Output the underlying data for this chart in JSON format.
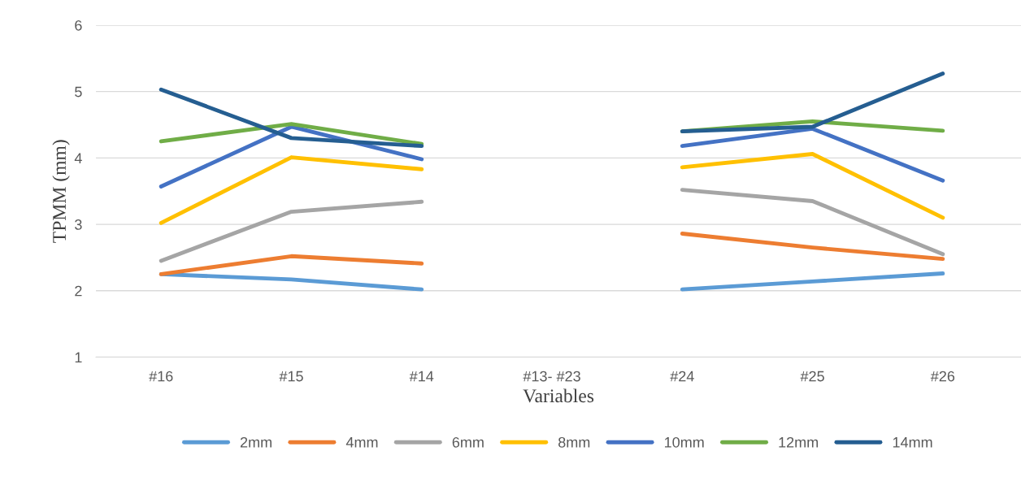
{
  "chart_data": {
    "type": "line",
    "xlabel": "Variables",
    "ylabel": "TPMM (mm)",
    "categories": [
      "#16",
      "#15",
      "#14",
      "#13- #23",
      "#24",
      "#25",
      "#26"
    ],
    "series": [
      {
        "name": "2mm",
        "color": "#5b9bd5",
        "values": [
          2.25,
          2.17,
          2.02,
          null,
          2.02,
          2.14,
          2.26
        ]
      },
      {
        "name": "4mm",
        "color": "#ed7d31",
        "values": [
          2.25,
          2.52,
          2.41,
          null,
          2.86,
          2.65,
          2.48
        ]
      },
      {
        "name": "6mm",
        "color": "#a5a5a5",
        "values": [
          2.45,
          3.19,
          3.34,
          null,
          3.52,
          3.35,
          2.55
        ]
      },
      {
        "name": "8mm",
        "color": "#ffc000",
        "values": [
          3.02,
          4.01,
          3.83,
          null,
          3.86,
          4.06,
          3.1
        ]
      },
      {
        "name": "10mm",
        "color": "#4472c4",
        "values": [
          3.57,
          4.47,
          3.98,
          null,
          4.18,
          4.44,
          3.66
        ]
      },
      {
        "name": "12mm",
        "color": "#70ad47",
        "values": [
          4.25,
          4.51,
          4.21,
          null,
          4.4,
          4.55,
          4.41
        ]
      },
      {
        "name": "14mm",
        "color": "#255e91",
        "values": [
          5.03,
          4.3,
          4.18,
          null,
          4.4,
          4.47,
          5.27
        ]
      }
    ],
    "ylim": [
      1,
      6
    ],
    "yticks": [
      1,
      2,
      3,
      4,
      5,
      6
    ],
    "grid": "y",
    "legend": "bottom",
    "marker": "none",
    "line_style": "solid"
  }
}
